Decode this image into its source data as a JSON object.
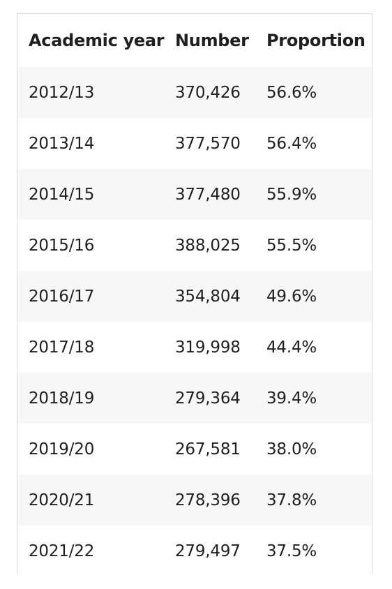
{
  "table": {
    "headers": {
      "year": "Academic year",
      "number": "Number",
      "proportion": "Proportion"
    },
    "rows": [
      {
        "year": "2012/13",
        "number": "370,426",
        "proportion": "56.6%"
      },
      {
        "year": "2013/14",
        "number": "377,570",
        "proportion": "56.4%"
      },
      {
        "year": "2014/15",
        "number": "377,480",
        "proportion": "55.9%"
      },
      {
        "year": "2015/16",
        "number": "388,025",
        "proportion": "55.5%"
      },
      {
        "year": "2016/17",
        "number": "354,804",
        "proportion": "49.6%"
      },
      {
        "year": "2017/18",
        "number": "319,998",
        "proportion": "44.4%"
      },
      {
        "year": "2018/19",
        "number": "279,364",
        "proportion": "39.4%"
      },
      {
        "year": "2019/20",
        "number": "267,581",
        "proportion": "38.0%"
      },
      {
        "year": "2020/21",
        "number": "278,396",
        "proportion": "37.8%"
      },
      {
        "year": "2021/22",
        "number": "279,497",
        "proportion": "37.5%"
      }
    ]
  },
  "colors": {
    "border": "#d9d9d9",
    "stripe": "#f7f7f7",
    "text": "#1f1f1f"
  }
}
